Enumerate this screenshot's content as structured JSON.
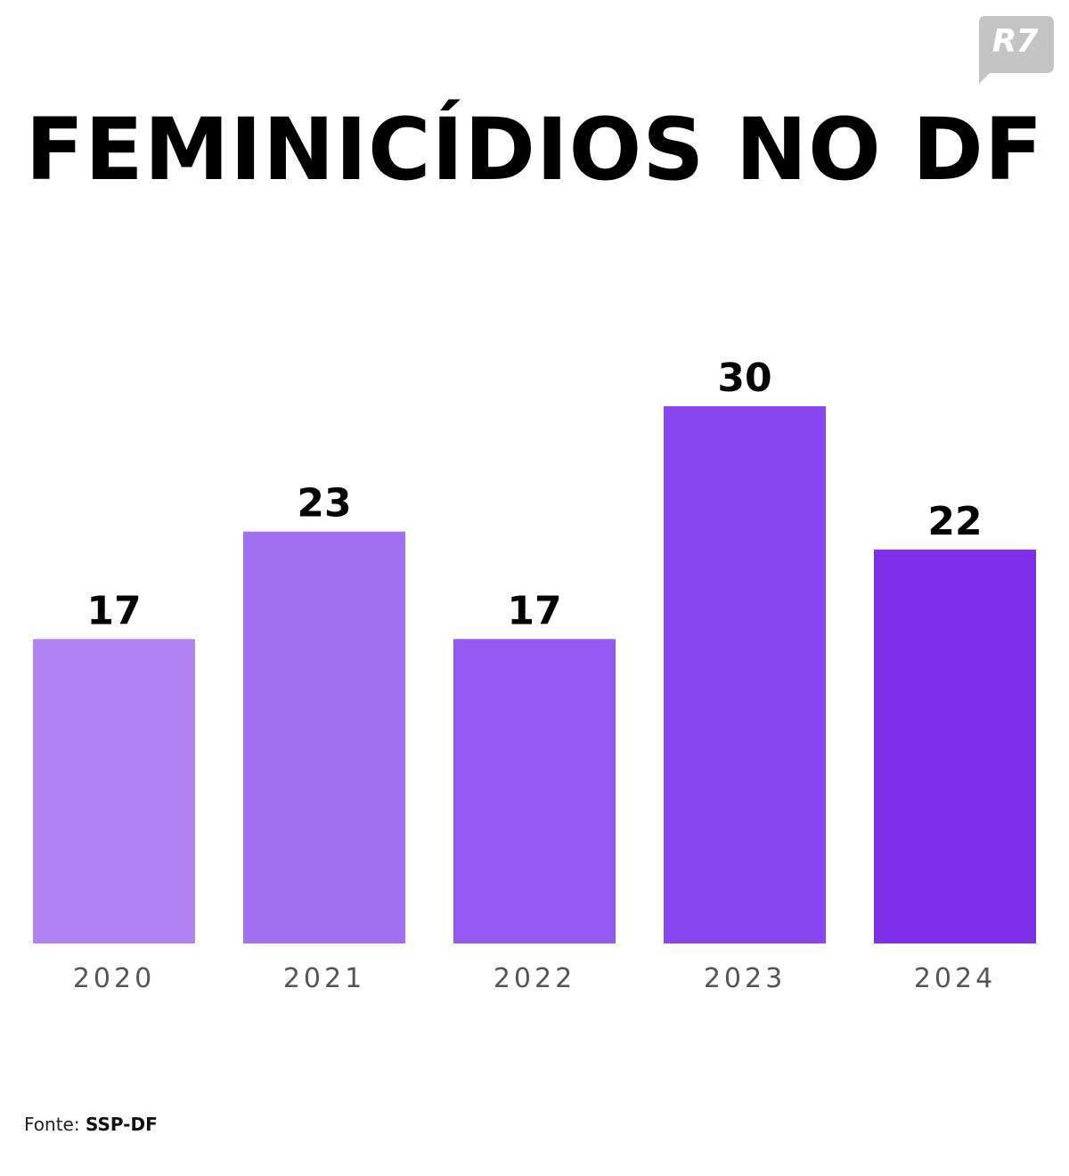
{
  "brand": {
    "logo_text": "R7",
    "logo_color": "#c4c4c4"
  },
  "title": "FEMINICÍDIOS NO DF",
  "source": {
    "label": "Fonte:",
    "value": "SSP-DF"
  },
  "chart_data": {
    "type": "bar",
    "categories": [
      "2020",
      "2021",
      "2022",
      "2023",
      "2024"
    ],
    "values": [
      17,
      23,
      17,
      30,
      22
    ],
    "data_labels": [
      "17",
      "23",
      "17",
      "30",
      "22"
    ],
    "colors": [
      "#b082f4",
      "#a170f1",
      "#9459f1",
      "#8945f0",
      "#7d2fe9"
    ],
    "title": "FEMINICÍDIOS NO DF",
    "xlabel": "",
    "ylabel": "",
    "ylim": [
      0,
      30
    ],
    "grid": false,
    "legend": "none"
  }
}
